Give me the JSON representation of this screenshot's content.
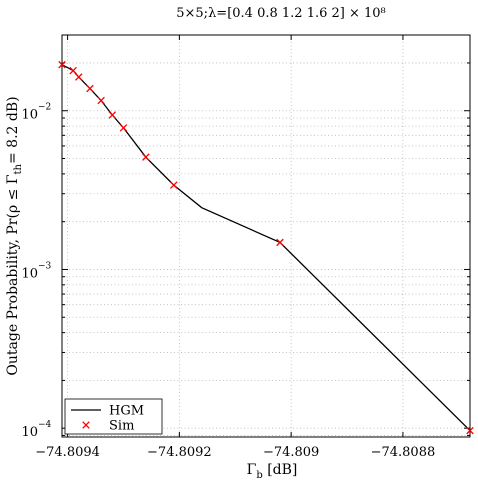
{
  "chart_data": {
    "type": "line",
    "title": "5×5;λ=[0.4 0.8 1.2 1.6 2] × 10⁸",
    "xlabel": "Γb [dB]",
    "ylabel": "Outage Probability, Pr(ρ ≤ Γth= 8.2 dB)",
    "xlim": [
      -74.80941,
      -74.80868
    ],
    "ylim": [
      8.8e-05,
      0.03
    ],
    "y_scale": "log",
    "grid": true,
    "legend_placement": "bottom-left",
    "x_ticks": [
      -74.8094,
      -74.8092,
      -74.809,
      -74.8088
    ],
    "x_tick_labels": [
      "−74.8094",
      "−74.8092",
      "−74.809",
      "−74.8088"
    ],
    "y_ticks": [
      0.0001,
      0.001,
      0.01
    ],
    "y_tick_labels": [
      {
        "base": "10",
        "exp": "−4"
      },
      {
        "base": "10",
        "exp": "−3"
      },
      {
        "base": "10",
        "exp": "−2"
      }
    ],
    "series": [
      {
        "name": "HGM",
        "style": "solid-line",
        "color": "#000000",
        "x": [
          -74.80941,
          -74.80939,
          -74.80938,
          -74.80936,
          -74.80934,
          -74.80932,
          -74.8093,
          -74.80926,
          -74.80921,
          -74.80916,
          -74.80902,
          -74.80868
        ],
        "y": [
          0.0195,
          0.0179,
          0.0163,
          0.0138,
          0.0116,
          0.0094,
          0.0078,
          0.0051,
          0.0034,
          0.00245,
          0.00148,
          9.66e-05
        ]
      },
      {
        "name": "Sim",
        "style": "x-marker",
        "color": "#ff0000",
        "x": [
          -74.80941,
          -74.80939,
          -74.80938,
          -74.80936,
          -74.80934,
          -74.80932,
          -74.8093,
          -74.80926,
          -74.80921,
          -74.80902,
          -74.80868
        ],
        "y": [
          0.0195,
          0.0179,
          0.0163,
          0.0138,
          0.0116,
          0.0094,
          0.0078,
          0.0051,
          0.0034,
          0.00148,
          9.66e-05
        ]
      }
    ]
  }
}
